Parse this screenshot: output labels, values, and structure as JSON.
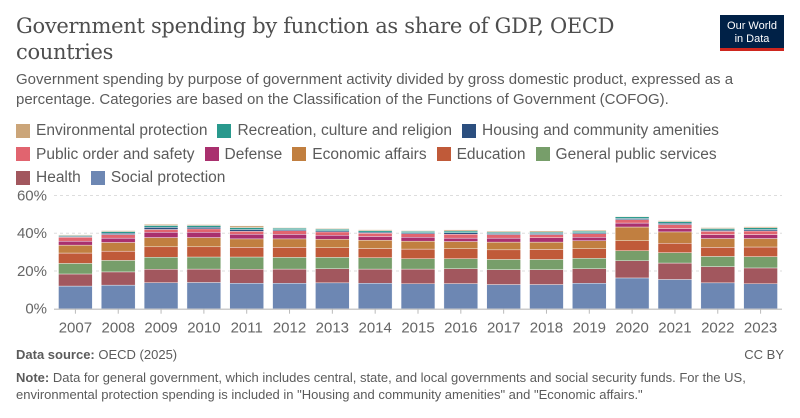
{
  "header": {
    "title": "Government spending by function as share of GDP, OECD countries",
    "subtitle": "Government spending by purpose of government activity divided by gross domestic product, expressed as a percentage. Categories are based on the Classification of the Functions of Government (COFOG).",
    "logo_line1": "Our World",
    "logo_line2": "in Data"
  },
  "footer": {
    "source_label": "Data source:",
    "source_value": "OECD (2025)",
    "license": "CC BY",
    "note_label": "Note:",
    "note_text": "Data for general government, which includes central, state, and local governments and social security funds. For the US, environmental protection spending is included in \"Housing and community amenities\" and \"Economic affairs.\""
  },
  "chart_data": {
    "type": "bar",
    "stacked": true,
    "title": "Government spending by function as share of GDP, OECD countries",
    "xlabel": "",
    "ylabel": "",
    "ylim": [
      0,
      60
    ],
    "yticks": [
      0,
      20,
      40,
      60
    ],
    "ytick_labels": [
      "0%",
      "20%",
      "40%",
      "60%"
    ],
    "grid": true,
    "legend_position": "top",
    "legend_order": [
      "Environmental protection",
      "Recreation, culture and religion",
      "Housing and community amenities",
      "Public order and safety",
      "Defense",
      "Economic affairs",
      "Education",
      "General public services",
      "Health",
      "Social protection"
    ],
    "categories": [
      "2007",
      "2008",
      "2009",
      "2010",
      "2011",
      "2012",
      "2013",
      "2014",
      "2015",
      "2016",
      "2017",
      "2018",
      "2019",
      "2020",
      "2021",
      "2022",
      "2023"
    ],
    "series": [
      {
        "name": "Social protection",
        "color": "#6d87b3",
        "values": [
          12.0,
          12.5,
          13.8,
          13.9,
          13.5,
          13.5,
          13.7,
          13.5,
          13.2,
          13.3,
          12.8,
          12.8,
          13.5,
          16.3,
          15.5,
          13.7,
          13.2
        ]
      },
      {
        "name": "Health",
        "color": "#a2575e",
        "values": [
          6.4,
          7.0,
          7.1,
          7.1,
          7.4,
          7.5,
          7.5,
          7.5,
          7.8,
          7.9,
          7.9,
          7.9,
          7.7,
          9.1,
          8.7,
          8.6,
          8.4
        ]
      },
      {
        "name": "General public services",
        "color": "#779e6a",
        "values": [
          5.6,
          6.1,
          6.4,
          6.4,
          6.5,
          6.2,
          6.0,
          6.0,
          5.5,
          5.3,
          5.4,
          5.4,
          5.5,
          5.3,
          5.5,
          5.4,
          6.0
        ]
      },
      {
        "name": "Education",
        "color": "#c05a39",
        "values": [
          5.5,
          4.9,
          5.5,
          5.4,
          5.1,
          5.3,
          5.1,
          4.9,
          5.1,
          5.3,
          5.1,
          5.3,
          5.1,
          5.3,
          5.0,
          4.8,
          5.1
        ]
      },
      {
        "name": "Economic affairs",
        "color": "#c17f40",
        "values": [
          4.2,
          4.6,
          4.9,
          4.9,
          4.5,
          4.5,
          4.5,
          4.4,
          4.2,
          3.8,
          4.1,
          3.9,
          4.2,
          7.3,
          6.0,
          4.7,
          4.5
        ]
      },
      {
        "name": "Defense",
        "color": "#a9306e",
        "values": [
          2.1,
          2.3,
          2.8,
          2.8,
          2.5,
          2.4,
          2.1,
          2.0,
          2.1,
          1.8,
          2.1,
          2.3,
          1.9,
          2.1,
          1.8,
          2.1,
          2.1
        ]
      },
      {
        "name": "Public order and safety",
        "color": "#e1646f",
        "values": [
          2.1,
          1.9,
          1.5,
          1.8,
          1.5,
          1.9,
          1.8,
          1.7,
          1.8,
          2.1,
          1.9,
          1.7,
          1.8,
          1.8,
          2.1,
          1.7,
          1.9
        ]
      },
      {
        "name": "Housing and community amenities",
        "color": "#2c4f7f",
        "values": [
          0.4,
          0.7,
          1.1,
          0.9,
          1.0,
          0.6,
          0.6,
          0.6,
          0.6,
          0.8,
          0.6,
          0.6,
          0.6,
          0.6,
          0.7,
          0.7,
          0.8
        ]
      },
      {
        "name": "Recreation, culture and religion",
        "color": "#29998d",
        "values": [
          0.5,
          0.9,
          1.0,
          0.9,
          1.0,
          0.8,
          0.8,
          0.8,
          0.7,
          0.9,
          0.7,
          0.7,
          0.8,
          0.9,
          0.9,
          0.8,
          0.9
        ]
      },
      {
        "name": "Environmental protection",
        "color": "#cba579",
        "values": [
          0.4,
          0.5,
          0.6,
          0.5,
          0.9,
          0.3,
          0.4,
          0.5,
          0.4,
          0.6,
          0.5,
          0.6,
          0.5,
          0.3,
          0.5,
          0.5,
          0.6
        ]
      }
    ]
  }
}
